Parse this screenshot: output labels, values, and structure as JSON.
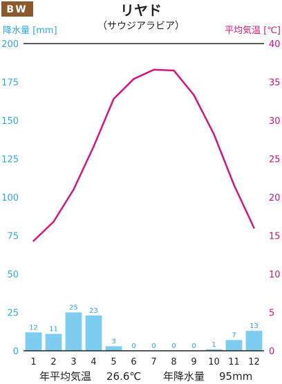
{
  "chart_data": {
    "type": "bar",
    "climate_class": "BW",
    "title": "リヤド",
    "subtitle": "（サウジアラビア）",
    "left_axis_label": "降水量 [mm]",
    "right_axis_label": "平均気温 [℃]",
    "categories": [
      "1",
      "2",
      "3",
      "4",
      "5",
      "6",
      "7",
      "8",
      "9",
      "10",
      "11",
      "12"
    ],
    "series": [
      {
        "type": "bar",
        "axis": "left",
        "color": "#7dcdf1",
        "values": [
          12,
          11,
          25,
          23,
          3,
          0,
          0,
          0,
          0,
          1,
          7,
          13
        ],
        "labels": [
          "12",
          "11",
          "25",
          "23",
          "3",
          "0",
          "0",
          "0",
          "0",
          "1",
          "7",
          "13"
        ]
      },
      {
        "type": "line",
        "axis": "right",
        "color": "#d8117b",
        "values": [
          14.3,
          16.8,
          21.0,
          26.6,
          32.8,
          35.4,
          36.6,
          36.5,
          33.3,
          28.2,
          21.6,
          16.0
        ]
      }
    ],
    "left_ylim": [
      0,
      200
    ],
    "left_ticks": [
      "0",
      "25",
      "50",
      "75",
      "100",
      "125",
      "150",
      "175",
      "200"
    ],
    "right_ylim": [
      0,
      40
    ],
    "right_ticks": [
      "0",
      "5",
      "10",
      "15",
      "20",
      "25",
      "30",
      "35",
      "40"
    ],
    "grid": false,
    "footer": {
      "avg_temp_label": "年平均気温",
      "avg_temp_value": "26.6℃",
      "annual_precip_label": "年降水量",
      "annual_precip_value": "95mm"
    },
    "colors": {
      "badge_bg": "#8b5a2b",
      "precip_axis": "#2ba8e0",
      "temp_axis": "#d8117b",
      "text": "#222222"
    }
  }
}
